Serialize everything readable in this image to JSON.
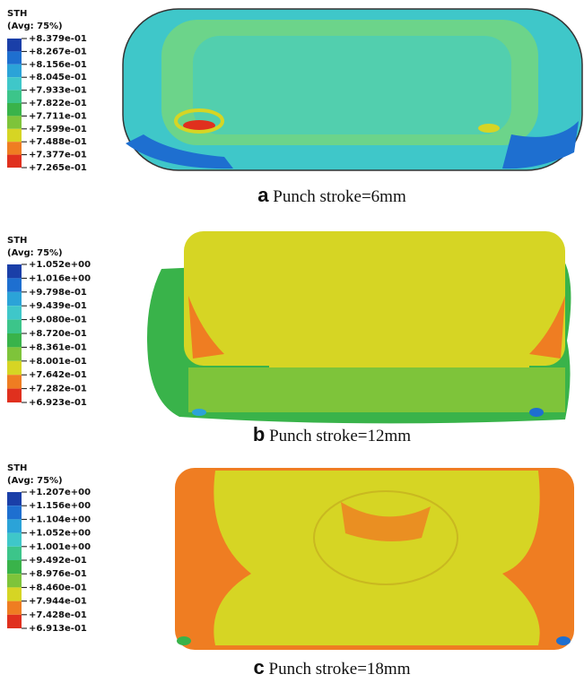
{
  "panels": [
    {
      "legend": {
        "title": "STH",
        "subtitle": "(Avg: 75%)",
        "labels": [
          "+8.379e-01",
          "+8.267e-01",
          "+8.156e-01",
          "+8.045e-01",
          "+7.933e-01",
          "+7.822e-01",
          "+7.711e-01",
          "+7.599e-01",
          "+7.488e-01",
          "+7.377e-01",
          "+7.265e-01"
        ]
      },
      "caption": {
        "letter": "a",
        "text": "Punch stroke=6mm"
      }
    },
    {
      "legend": {
        "title": "STH",
        "subtitle": "(Avg: 75%)",
        "labels": [
          "+1.052e+00",
          "+1.016e+00",
          "+9.798e-01",
          "+9.439e-01",
          "+9.080e-01",
          "+8.720e-01",
          "+8.361e-01",
          "+8.001e-01",
          "+7.642e-01",
          "+7.282e-01",
          "+6.923e-01"
        ]
      },
      "caption": {
        "letter": "b",
        "text": "Punch stroke=12mm"
      }
    },
    {
      "legend": {
        "title": "STH",
        "subtitle": "(Avg: 75%)",
        "labels": [
          "+1.207e+00",
          "+1.156e+00",
          "+1.104e+00",
          "+1.052e+00",
          "+1.001e+00",
          "+9.492e-01",
          "+8.976e-01",
          "+8.460e-01",
          "+7.944e-01",
          "+7.428e-01",
          "+6.913e-01"
        ]
      },
      "caption": {
        "letter": "c",
        "text": "Punch stroke=18mm"
      }
    }
  ]
}
